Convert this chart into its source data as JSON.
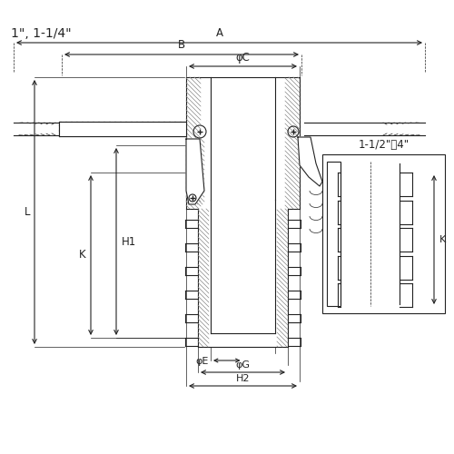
{
  "bg_color": "#ffffff",
  "lc": "#222222",
  "lc_light": "#888888",
  "lw": 0.8,
  "lw_thin": 0.5,
  "labels": {
    "size_label": "1\", 1-1/4\"",
    "A": "A",
    "B": "B",
    "phiC": "φC",
    "L": "L",
    "K": "K",
    "H1": "H1",
    "phiE": "φE",
    "phiG": "φG",
    "H2": "H2",
    "inset_label": "1-1/2\"～4\""
  },
  "fs": 8.5
}
